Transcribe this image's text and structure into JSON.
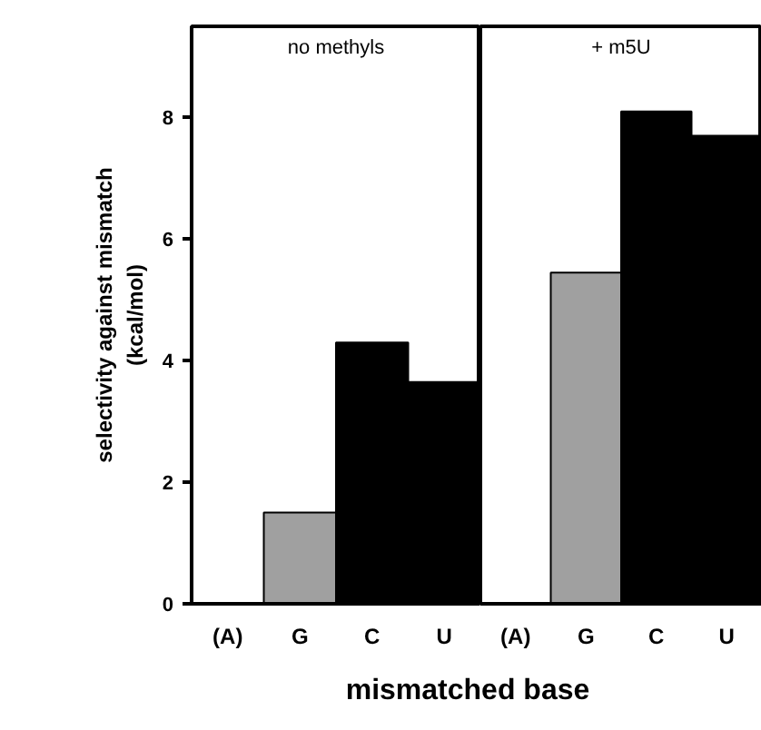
{
  "chart_data": [
    {
      "type": "bar",
      "title": "no methyls",
      "ylabel": "selectivity against mismatch\n(kcal/mol)",
      "xlabel": "mismatched base",
      "categories": [
        "(A)",
        "G",
        "C",
        "U"
      ],
      "values": [
        0,
        1.5,
        4.3,
        3.65
      ],
      "colors": [
        "#000000",
        "#a0a0a0",
        "#000000",
        "#000000"
      ],
      "ylim": [
        0,
        9.5
      ],
      "yticks": [
        0,
        2,
        4,
        6,
        8
      ],
      "grid": false
    },
    {
      "type": "bar",
      "title": "+ m5U",
      "categories": [
        "(A)",
        "G",
        "C",
        "U"
      ],
      "values": [
        0,
        5.45,
        8.1,
        7.7
      ],
      "colors": [
        "#000000",
        "#a0a0a0",
        "#000000",
        "#000000"
      ],
      "ylim": [
        0,
        9.5
      ],
      "yticks": [
        0,
        2,
        4,
        6,
        8
      ],
      "tick_labels": "x",
      "grid": false
    }
  ]
}
